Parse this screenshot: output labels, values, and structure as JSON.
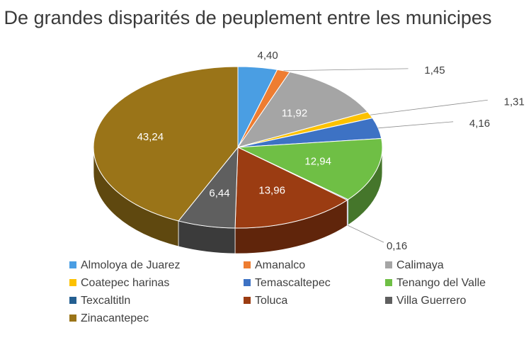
{
  "chart_data": {
    "type": "pie",
    "title": "De grandes disparités de peuplement entre les municipes",
    "categories": [
      "Almoloya de Juarez",
      "Amanalco",
      "Calimaya",
      "Coatepec harinas",
      "Temascaltepec",
      "Tenango del Valle",
      "Texcaltitln",
      "Toluca",
      "Villa Guerrero",
      "Zinacantepec"
    ],
    "values": [
      4.4,
      1.45,
      11.92,
      1.31,
      4.16,
      12.94,
      0.16,
      13.96,
      6.44,
      43.24
    ],
    "value_labels": [
      "4,40",
      "1,45",
      "11,92",
      "1,31",
      "4,16",
      "12,94",
      "0,16",
      "13,96",
      "6,44",
      "43,24"
    ],
    "colors": [
      "#4a9ee3",
      "#ee7d31",
      "#a5a5a5",
      "#fcc100",
      "#3d72c4",
      "#6fbf45",
      "#245f91",
      "#9b3c12",
      "#5f5f5f",
      "#9a7418"
    ],
    "legend_position": "bottom",
    "three_d": true
  }
}
